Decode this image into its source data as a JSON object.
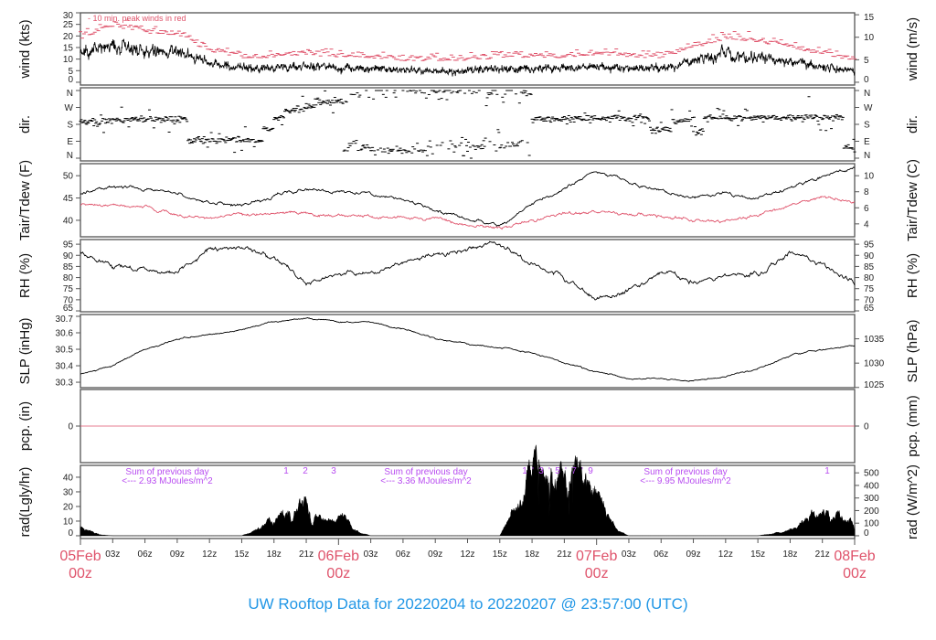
{
  "chart_data": {
    "type": "line",
    "title": "UW Rooftop Data for 20220204  to  20220207 @ 23:57:00  (UTC)",
    "time_axis": {
      "hour_labels": [
        "03z",
        "06z",
        "09z",
        "12z",
        "15z",
        "18z",
        "21z"
      ],
      "date_labels": [
        {
          "date": "05Feb",
          "hour": "00z"
        },
        {
          "date": "06Feb",
          "hour": "00z"
        },
        {
          "date": "07Feb",
          "hour": "00z"
        },
        {
          "date": "08Feb",
          "hour": "00z"
        }
      ]
    },
    "times_3h": [
      "05Feb 00z",
      "05Feb 03z",
      "05Feb 06z",
      "05Feb 09z",
      "05Feb 12z",
      "05Feb 15z",
      "05Feb 18z",
      "05Feb 21z",
      "06Feb 00z",
      "06Feb 03z",
      "06Feb 06z",
      "06Feb 09z",
      "06Feb 12z",
      "06Feb 15z",
      "06Feb 18z",
      "06Feb 21z",
      "07Feb 00z",
      "07Feb 03z",
      "07Feb 06z",
      "07Feb 09z",
      "07Feb 12z",
      "07Feb 15z",
      "07Feb 18z",
      "07Feb 21z",
      "08Feb 00z"
    ],
    "panels": [
      {
        "key": "wind",
        "ylabel_left": "wind (kts)",
        "ylabel_right": "wind (m/s)",
        "ylim": [
          0,
          30
        ],
        "ticks_left": [
          0,
          5,
          10,
          15,
          20,
          25,
          30
        ],
        "ticks_right": [
          0,
          5,
          10,
          15
        ],
        "annotation": "10 min. peak winds in red",
        "series": [
          {
            "name": "wind",
            "color": "#000000",
            "values": [
              12,
              16,
              14,
              13,
              8,
              6,
              6,
              7,
              6,
              6,
              5,
              5,
              5,
              6,
              6,
              6,
              7,
              6,
              6,
              9,
              12,
              11,
              9,
              7,
              5
            ]
          }
        ],
        "peak_color": "#df536b"
      },
      {
        "key": "dir",
        "ylabel_left": "dir.",
        "ylabel_right": "dir.",
        "ylim": [
          0,
          360
        ],
        "tick_values": [
          0,
          90,
          180,
          270,
          360
        ],
        "tick_labels": [
          "N",
          "E",
          "S",
          "W",
          "N"
        ],
        "series": [
          {
            "times": [
              "05Feb 00z",
              "05Feb 03z",
              "05Feb 10z",
              "05Feb 17z",
              "05Feb 18z",
              "05Feb 19z",
              "05Feb 21z",
              "05Feb 22z",
              "06Feb 01z",
              "06Feb 02z",
              "06Feb 03z",
              "06Feb 08z",
              "06Feb 12z",
              "06Feb 14z",
              "06Feb 15z",
              "06Feb 17z",
              "06Feb 18z",
              "07Feb 05z",
              "07Feb 07z",
              "07Feb 09z",
              "07Feb 10z",
              "07Feb 23z",
              "08Feb 00z"
            ],
            "deg": [
              190,
              205,
              95,
              160,
              215,
              255,
              285,
              300,
              340,
              60,
              40,
              355,
              60,
              350,
              70,
              345,
              210,
              150,
              200,
              140,
              215,
              60,
              20
            ]
          }
        ]
      },
      {
        "key": "temp",
        "ylabel_left": "Tair/Tdew (F)",
        "ylabel_right": "Tair/Tdew (C)",
        "ylim": [
          36.3,
          52.7
        ],
        "ticks_left": [
          40,
          45,
          50
        ],
        "ticks_right": [
          4,
          6,
          8,
          10
        ],
        "series": [
          {
            "name": "Tair",
            "color": "#000000",
            "values": [
              46,
              47.5,
              47,
              46,
              44,
              43.5,
              45.5,
              47,
              46.5,
              46,
              44.5,
              42.5,
              40,
              39,
              43.5,
              47,
              51,
              48.5,
              46.5,
              45,
              46,
              45,
              47,
              50,
              51.5
            ]
          },
          {
            "name": "Tdew",
            "color": "#df536b",
            "values": [
              43.5,
              43.5,
              43,
              41,
              40.5,
              41.5,
              41.5,
              41.5,
              41,
              41,
              40.5,
              40.5,
              39,
              38.5,
              40,
              41.5,
              42,
              41.5,
              41,
              40,
              40,
              41,
              43.5,
              45,
              44
            ]
          }
        ]
      },
      {
        "key": "rh",
        "ylabel_left": "RH (%)",
        "ylabel_right": "RH (%)",
        "ylim": [
          64.6,
          97.1
        ],
        "ticks_left": [
          65,
          70,
          75,
          80,
          85,
          90,
          95
        ],
        "ticks_right": [
          65,
          70,
          75,
          80,
          85,
          90,
          95
        ],
        "series": [
          {
            "name": "RH",
            "color": "#000000",
            "values": [
              91,
              85,
              84,
              82,
              93,
              93,
              89,
              78,
              82,
              82,
              86,
              90,
              93,
              95,
              86,
              80,
              70,
              74,
              82,
              78,
              81,
              82,
              92,
              86,
              77
            ]
          }
        ]
      },
      {
        "key": "slp",
        "ylabel_left": "SLP (inHg)",
        "ylabel_right": "SLP (hPa)",
        "ylim": [
          30.267,
          30.711
        ],
        "ticks_left": [
          30.3,
          30.4,
          30.5,
          30.6,
          30.7
        ],
        "ticks_right": [
          1025,
          1030,
          1035
        ],
        "series": [
          {
            "name": "SLP",
            "color": "#000000",
            "values": [
              30.35,
              30.4,
              30.5,
              30.56,
              30.59,
              30.62,
              30.67,
              30.69,
              30.67,
              30.66,
              30.62,
              30.57,
              30.53,
              30.51,
              30.48,
              30.42,
              30.36,
              30.32,
              30.32,
              30.31,
              30.33,
              30.38,
              30.46,
              30.5,
              30.52
            ]
          }
        ]
      },
      {
        "key": "pcp",
        "ylabel_left": "pcp. (in)",
        "ylabel_right": "pcp. (mm)",
        "ylim": [
          -1,
          1
        ],
        "ticks_left": [
          0
        ],
        "ticks_right": [
          0
        ],
        "series": [
          {
            "name": "pcp",
            "color": "#df536b",
            "values": [
              0,
              0,
              0,
              0,
              0,
              0,
              0,
              0,
              0,
              0,
              0,
              0,
              0,
              0,
              0,
              0,
              0,
              0,
              0,
              0,
              0,
              0,
              0,
              0,
              0
            ]
          }
        ]
      },
      {
        "key": "rad",
        "ylabel_left": "rad(Lgly/hr)",
        "ylabel_right": "rad (W/m^2)",
        "ylim": [
          0,
          48
        ],
        "ticks_left": [
          0,
          10,
          20,
          30,
          40
        ],
        "ticks_right": [
          0,
          100,
          200,
          300,
          400,
          500
        ],
        "series": [
          {
            "times": [
              "05Feb 00z",
              "05Feb 01z",
              "05Feb 02z",
              "05Feb 03z",
              "05Feb 15z",
              "05Feb 16z",
              "05Feb 17z",
              "05Feb 18z",
              "05Feb 19z",
              "05Feb 20z",
              "05Feb 21z",
              "05Feb 22z",
              "05Feb 23z",
              "06Feb 00z",
              "06Feb 01z",
              "06Feb 02z",
              "06Feb 03z",
              "06Feb 15z",
              "06Feb 16z",
              "06Feb 17z",
              "06Feb 18z",
              "06Feb 19z",
              "06Feb 20z",
              "06Feb 21z",
              "06Feb 22z",
              "06Feb 23z",
              "07Feb 00z",
              "07Feb 01z",
              "07Feb 02z",
              "07Feb 03z",
              "07Feb 15z",
              "07Feb 16z",
              "07Feb 17z",
              "07Feb 18z",
              "07Feb 19z",
              "07Feb 20z",
              "07Feb 21z",
              "07Feb 22z",
              "07Feb 23z",
              "08Feb 00z"
            ],
            "lyhr": [
              6,
              3,
              0.5,
              0,
              0,
              3,
              7,
              12,
              15,
              15,
              22,
              15,
              8,
              12,
              8,
              2,
              0,
              0,
              12,
              22,
              36,
              38,
              40,
              40,
              42,
              36,
              28,
              14,
              3,
              0,
              0,
              1,
              2,
              4,
              8,
              12,
              15,
              16,
              12,
              8
            ]
          }
        ],
        "daily_sums": [
          {
            "line1": "Sum of previous day",
            "line2": "<--- 2.93 MJoules/m^2"
          },
          {
            "line1": "Sum of previous day",
            "line2": "<--- 3.36 MJoules/m^2"
          },
          {
            "line1": "Sum of previous day",
            "line2": "<--- 9.95 MJoules/m^2"
          }
        ],
        "markers": [
          "1",
          "2",
          "3",
          "1",
          "'",
          "3",
          "'",
          "5",
          "'",
          "7",
          "'",
          "9",
          "1"
        ]
      }
    ]
  }
}
